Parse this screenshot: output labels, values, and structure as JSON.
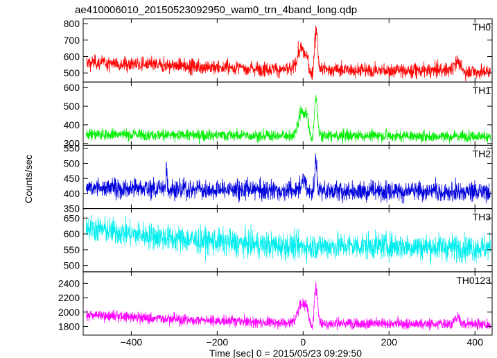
{
  "chart_data": {
    "type": "line",
    "title": "ae410006010_20150523092950_wam0_trn_4band_long.qdp",
    "xlabel": "Time [sec] 0 = 2015/05/23 09:29:50",
    "ylabel": "Counts/sec",
    "xlim": [
      -512,
      440
    ],
    "xticks": [
      -400,
      -200,
      0,
      200,
      400
    ],
    "grid": false,
    "panels": [
      {
        "name": "TH0",
        "color": "#ff0000",
        "ylim": [
          445,
          830
        ],
        "yticks": [
          500,
          600,
          700,
          800
        ],
        "baseline": [
          [
            -505,
            565
          ],
          [
            -400,
            555
          ],
          [
            -300,
            545
          ],
          [
            -200,
            535
          ],
          [
            -100,
            525
          ],
          [
            -20,
            520
          ],
          [
            0,
            520
          ],
          [
            60,
            520
          ],
          [
            150,
            515
          ],
          [
            250,
            512
          ],
          [
            350,
            520
          ],
          [
            380,
            508
          ],
          [
            435,
            505
          ]
        ],
        "noise": 32,
        "features": [
          {
            "x": -5,
            "w": 12,
            "h": 150
          },
          {
            "x": 10,
            "w": 6,
            "h": 60
          },
          {
            "x": 30,
            "w": 5,
            "h": 280
          },
          {
            "x": 358,
            "w": 8,
            "h": 70
          }
        ],
        "dips": [
          {
            "x": 20,
            "w": 6,
            "h": 40
          }
        ]
      },
      {
        "name": "TH1",
        "color": "#00ee00",
        "ylim": [
          290,
          630
        ],
        "yticks": [
          300,
          400,
          500,
          600
        ],
        "baseline": [
          [
            -505,
            350
          ],
          [
            -300,
            345
          ],
          [
            -100,
            342
          ],
          [
            0,
            340
          ],
          [
            200,
            340
          ],
          [
            435,
            338
          ]
        ],
        "noise": 22,
        "features": [
          {
            "x": -3,
            "w": 12,
            "h": 150
          },
          {
            "x": 10,
            "w": 6,
            "h": 80
          },
          {
            "x": 30,
            "w": 5,
            "h": 250
          }
        ],
        "dips": [
          {
            "x": 20,
            "w": 6,
            "h": 30
          }
        ]
      },
      {
        "name": "TH2",
        "color": "#0000dd",
        "ylim": [
          350,
          560
        ],
        "yticks": [
          350,
          400,
          450,
          500,
          550
        ],
        "baseline": [
          [
            -505,
            420
          ],
          [
            -400,
            418
          ],
          [
            -200,
            412
          ],
          [
            0,
            410
          ],
          [
            200,
            408
          ],
          [
            435,
            405
          ]
        ],
        "noise": 24,
        "features": [
          {
            "x": -318,
            "w": 2,
            "h": 90
          },
          {
            "x": 0,
            "w": 10,
            "h": 35
          },
          {
            "x": 30,
            "w": 3,
            "h": 125
          }
        ],
        "dips": []
      },
      {
        "name": "TH3",
        "color": "#00eeee",
        "ylim": [
          480,
          680
        ],
        "yticks": [
          500,
          550,
          600,
          650
        ],
        "baseline": [
          [
            -505,
            620
          ],
          [
            -400,
            600
          ],
          [
            -300,
            585
          ],
          [
            -200,
            575
          ],
          [
            -100,
            565
          ],
          [
            0,
            560
          ],
          [
            100,
            562
          ],
          [
            200,
            562
          ],
          [
            300,
            558
          ],
          [
            435,
            555
          ]
        ],
        "noise": 30,
        "features": [],
        "dips": []
      },
      {
        "name": "TH0123",
        "color": "#ff00ff",
        "ylim": [
          1680,
          2560
        ],
        "yticks": [
          1800,
          2000,
          2200,
          2400
        ],
        "baseline": [
          [
            -505,
            1960
          ],
          [
            -400,
            1930
          ],
          [
            -300,
            1900
          ],
          [
            -200,
            1880
          ],
          [
            -100,
            1860
          ],
          [
            0,
            1850
          ],
          [
            100,
            1840
          ],
          [
            200,
            1840
          ],
          [
            300,
            1835
          ],
          [
            380,
            1840
          ],
          [
            435,
            1830
          ]
        ],
        "noise": 55,
        "features": [
          {
            "x": -3,
            "w": 12,
            "h": 330
          },
          {
            "x": 10,
            "w": 6,
            "h": 150
          },
          {
            "x": 30,
            "w": 5,
            "h": 620
          },
          {
            "x": 358,
            "w": 8,
            "h": 110
          }
        ],
        "dips": [
          {
            "x": 20,
            "w": 6,
            "h": 90
          }
        ]
      }
    ]
  }
}
